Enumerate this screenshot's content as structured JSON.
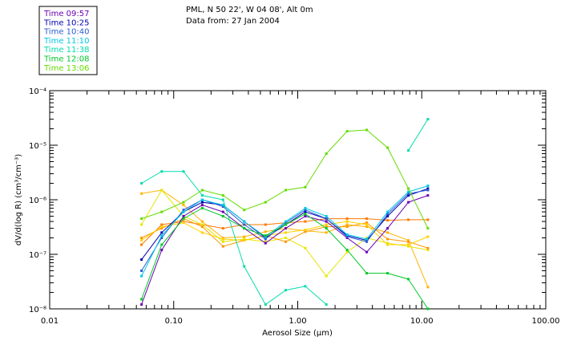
{
  "chart_data": {
    "type": "line",
    "title": "PML, N 50 22', W 04 08', Alt 0m",
    "subtitle": "Data from: 27 Jan 2004",
    "xlabel": "Aerosol Size (µm)",
    "ylabel": "dV/d(log R)  (cm³/cm⁻³)",
    "xscale": "log",
    "yscale": "log",
    "xlim": [
      0.01,
      100
    ],
    "ylim": [
      1e-08,
      0.0001
    ],
    "x_tick_labels": [
      "0.01",
      "0.10",
      "1.00",
      "10.00",
      "100.00"
    ],
    "y_tick_labels": [
      "10⁻⁸",
      "10⁻⁷",
      "10⁻⁶",
      "10⁻⁵",
      "10⁻⁴"
    ],
    "legend_position": "top-left, outside plot",
    "x": [
      0.055,
      0.08,
      0.12,
      0.17,
      0.25,
      0.37,
      0.55,
      0.8,
      1.15,
      1.7,
      2.5,
      3.6,
      5.3,
      7.8,
      11.2
    ],
    "series": [
      {
        "name": "Time 09:57",
        "color": "#6a00b4",
        "values": [
          1.2e-08,
          1.2e-07,
          5e-07,
          8e-07,
          6e-07,
          3e-07,
          1.6e-07,
          3e-07,
          5e-07,
          4e-07,
          2e-07,
          1.1e-07,
          3e-07,
          9e-07,
          1.2e-06
        ]
      },
      {
        "name": "Time 10:25",
        "color": "#0000b4",
        "values": [
          8e-08,
          2.5e-07,
          6e-07,
          9e-07,
          8e-07,
          4e-07,
          2e-07,
          3.5e-07,
          6e-07,
          4.5e-07,
          2.2e-07,
          1.8e-07,
          5e-07,
          1.2e-06,
          1.6e-06
        ]
      },
      {
        "name": "Time 10:40",
        "color": "#2a5cd4",
        "values": [
          5e-08,
          2e-07,
          6.5e-07,
          1e-06,
          7.5e-07,
          3.5e-07,
          1.9e-07,
          3.8e-07,
          6.5e-07,
          4.5e-07,
          2.1e-07,
          1.7e-07,
          5.5e-07,
          1.3e-06,
          1.5e-06
        ]
      },
      {
        "name": "Time 11:10",
        "color": "#00c8e8",
        "values": [
          4e-08,
          2.2e-07,
          6e-07,
          1e-06,
          8e-07,
          4e-07,
          2.1e-07,
          4e-07,
          7e-07,
          5e-07,
          2.3e-07,
          1.9e-07,
          6e-07,
          1.4e-06,
          1.8e-06
        ]
      },
      {
        "name": "Time 11:38",
        "color": "#00dcaa",
        "values": [
          2e-06,
          3.3e-06,
          3.3e-06,
          1.2e-06,
          1e-06,
          6e-08,
          1.2e-08,
          2.2e-08,
          2.6e-08,
          1.2e-08,
          null,
          null,
          null,
          8e-06,
          3e-05
        ]
      },
      {
        "name": "Time 12:08",
        "color": "#00c828",
        "values": [
          1.5e-08,
          1.5e-07,
          4.5e-07,
          7e-07,
          5e-07,
          3e-07,
          2.2e-07,
          3.5e-07,
          5.5e-07,
          3e-07,
          1.2e-07,
          4.5e-08,
          4.5e-08,
          3.5e-08,
          1e-08
        ]
      },
      {
        "name": "Time 13:06",
        "color": "#64dc00",
        "values": [
          4.5e-07,
          6e-07,
          9e-07,
          1.5e-06,
          1.2e-06,
          6.5e-07,
          9e-07,
          1.5e-06,
          1.7e-06,
          7e-06,
          1.8e-05,
          1.9e-05,
          9e-06,
          1.6e-06,
          3e-07
        ]
      }
    ],
    "extra_series": [
      {
        "color": "#ffb400",
        "values": [
          1.3e-06,
          1.5e-06,
          8e-07,
          4e-07,
          2e-07,
          2.1e-07,
          2.6e-07,
          3e-07,
          2.7e-07,
          2.5e-07,
          3.5e-07,
          3.2e-07,
          2.5e-07,
          1.8e-07,
          2.5e-08
        ]
      },
      {
        "color": "#ff7800",
        "values": [
          1.5e-07,
          3.5e-07,
          4e-07,
          3.5e-07,
          3e-07,
          3.5e-07,
          3.5e-07,
          3.8e-07,
          4e-07,
          4.5e-07,
          4.5e-07,
          4.5e-07,
          4.2e-07,
          4.3e-07,
          4.3e-07
        ]
      },
      {
        "color": "#e6e600",
        "values": [
          3.5e-07,
          1.5e-06,
          5e-07,
          3.5e-07,
          1.7e-07,
          1.9e-07,
          1.7e-07,
          2e-07,
          1.3e-07,
          4e-08,
          1.1e-07,
          2e-07,
          1.6e-07,
          1.4e-07,
          1.2e-07
        ]
      },
      {
        "color": "#ff9600",
        "values": [
          2e-07,
          3e-07,
          4.5e-07,
          3.2e-07,
          1.4e-07,
          1.8e-07,
          2.2e-07,
          1.7e-07,
          2.6e-07,
          3.2e-07,
          3.2e-07,
          3.8e-07,
          1.9e-07,
          1.7e-07,
          1.3e-07
        ]
      },
      {
        "color": "#ffd200",
        "values": [
          1.8e-07,
          3.2e-07,
          3.8e-07,
          2.5e-07,
          1.9e-07,
          1.8e-07,
          2.2e-07,
          2.5e-07,
          2.8e-07,
          3.5e-07,
          4e-07,
          3.5e-07,
          1.5e-07,
          1.5e-07,
          2.1e-07
        ]
      }
    ]
  }
}
